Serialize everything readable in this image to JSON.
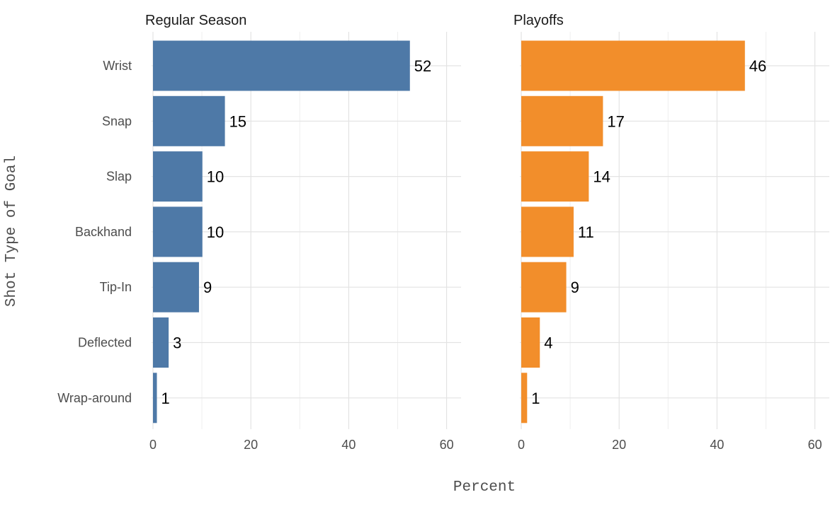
{
  "chart_data": {
    "type": "bar",
    "orientation": "horizontal",
    "categories": [
      "Wrist",
      "Snap",
      "Slap",
      "Backhand",
      "Tip-In",
      "Deflected",
      "Wrap-around"
    ],
    "xlabel": "Percent",
    "ylabel": "Shot Type of Goal",
    "xlim": [
      0,
      63
    ],
    "xticks": [
      0,
      20,
      40,
      60
    ],
    "grid": true,
    "legend": "none",
    "panels": [
      {
        "title": "Regular Season",
        "color": "#4E79A7",
        "values": [
          52.5,
          14.7,
          10.1,
          10.1,
          9.4,
          3.2,
          0.8
        ],
        "labels": [
          "52",
          "15",
          "10",
          "10",
          "9",
          "3",
          "1"
        ]
      },
      {
        "title": "Playoffs",
        "color": "#F28E2B",
        "values": [
          45.7,
          16.7,
          13.8,
          10.7,
          9.2,
          3.8,
          1.2
        ],
        "labels": [
          "46",
          "17",
          "14",
          "11",
          "9",
          "4",
          "1"
        ]
      }
    ]
  }
}
